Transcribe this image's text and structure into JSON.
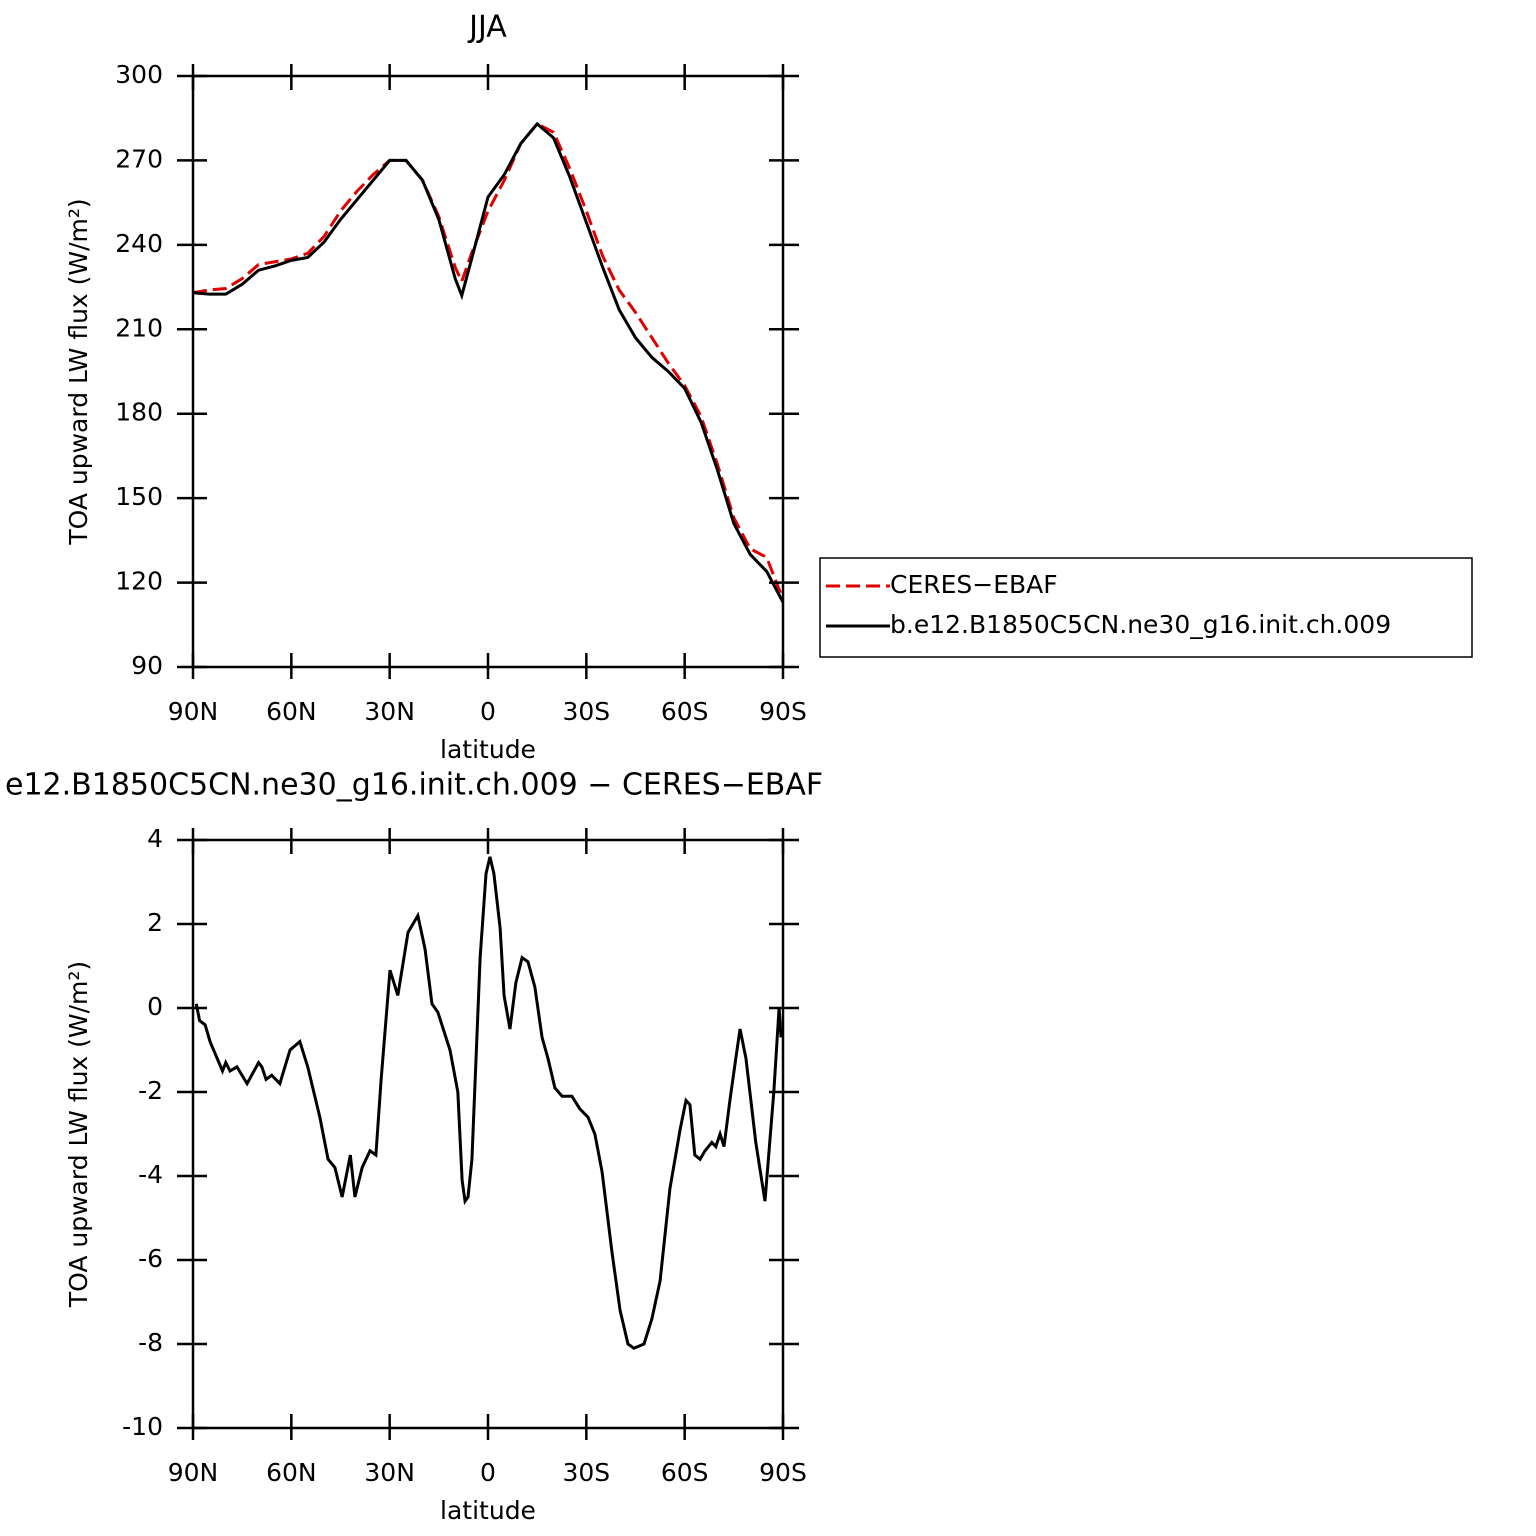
{
  "chart_data": [
    {
      "type": "line",
      "title": "JJA",
      "x_label": "latitude",
      "y_label": "TOA upward LW flux (W/m²)",
      "x": [
        90,
        85,
        80,
        75,
        70,
        65,
        60,
        55,
        50,
        45,
        40,
        35,
        30,
        25,
        20,
        15,
        10,
        8,
        5,
        0,
        -5,
        -10,
        -15,
        -20,
        -25,
        -30,
        -35,
        -40,
        -45,
        -50,
        -55,
        -60,
        -65,
        -70,
        -75,
        -80,
        -85,
        -90
      ],
      "series": [
        {
          "name": "CERES−EBAF",
          "color": "#e00000",
          "line_style": "dashed",
          "values": [
            223,
            224,
            224.5,
            228,
            233,
            234,
            235,
            237,
            243,
            252,
            259,
            265,
            270,
            270,
            263,
            250,
            232,
            227,
            237,
            252,
            263,
            276,
            283,
            280,
            267,
            252,
            236,
            224,
            216,
            207,
            198,
            190,
            179,
            162,
            143,
            132,
            129,
            114
          ]
        },
        {
          "name": "b.e12.B1850C5CN.ne30_g16.init.ch.009",
          "color": "#000000",
          "line_style": "solid",
          "values": [
            223,
            222.5,
            222.5,
            226,
            231,
            232.5,
            234.5,
            235.5,
            241,
            249,
            256,
            263,
            270,
            270,
            263,
            249,
            228,
            222,
            235,
            257,
            265,
            276,
            283,
            278,
            264,
            248,
            232,
            217,
            207,
            200,
            195,
            189,
            177,
            160,
            141,
            130,
            124,
            113
          ]
        }
      ],
      "xlim": [
        90,
        -90
      ],
      "xticks": [
        {
          "value": 90,
          "label": "90N"
        },
        {
          "value": 60,
          "label": "60N"
        },
        {
          "value": 30,
          "label": "30N"
        },
        0,
        {
          "value": -30,
          "label": "30S"
        },
        {
          "value": -60,
          "label": "60S"
        },
        {
          "value": -90,
          "label": "90S"
        }
      ],
      "ylim": [
        90,
        300
      ],
      "yticks": [
        90,
        120,
        150,
        180,
        210,
        240,
        270,
        300
      ],
      "legend": "right"
    },
    {
      "type": "line",
      "title": "e12.B1850C5CN.ne30_g16.init.ch.009 − CERES−EBAF",
      "x_label": "latitude",
      "y_label": "TOA upward LW flux (W/m²)",
      "x": [
        89,
        88,
        86.3,
        84.8,
        81,
        80,
        78.7,
        76.6,
        73.5,
        70,
        69,
        67.7,
        66,
        63.5,
        60.4,
        57.4,
        55,
        51.3,
        48.8,
        46.7,
        44.5,
        42,
        40.6,
        38.4,
        36,
        34.2,
        32.6,
        29.9,
        27.5,
        24.4,
        21.4,
        19.2,
        17.1,
        15.3,
        11.6,
        9.2,
        7.9,
        7,
        6.1,
        4.9,
        2.4,
        0.6,
        -0.6,
        -1.8,
        -3.7,
        -4.9,
        -6.7,
        -8.5,
        -10.4,
        -12.2,
        -14.3,
        -16.5,
        -18.3,
        -20.4,
        -22.6,
        -25.6,
        -28,
        -30.5,
        -32.6,
        -34.8,
        -37.8,
        -40.3,
        -42.7,
        -44.5,
        -47.6,
        -50,
        -52.5,
        -55.5,
        -58.6,
        -60.4,
        -61.6,
        -63.1,
        -64.7,
        -66.2,
        -68.3,
        -69.5,
        -70.8,
        -72,
        -73.8,
        -75.6,
        -76.9,
        -78.7,
        -81.7,
        -84.5,
        -87.2,
        -88.8,
        -89.4
      ],
      "series": [
        {
          "name": "b.e12.B1850C5CN.ne30_g16.init.ch.009",
          "color": "#000000",
          "line_style": "solid",
          "values": [
            0.1,
            -0.3,
            -0.4,
            -0.8,
            -1.5,
            -1.3,
            -1.5,
            -1.4,
            -1.8,
            -1.3,
            -1.4,
            -1.7,
            -1.6,
            -1.8,
            -1.0,
            -0.8,
            -1.4,
            -2.6,
            -3.6,
            -3.8,
            -4.5,
            -3.5,
            -4.5,
            -3.8,
            -3.4,
            -3.5,
            -1.7,
            0.9,
            0.3,
            1.8,
            2.2,
            1.4,
            0.1,
            -0.1,
            -1.0,
            -2.0,
            -4.1,
            -4.6,
            -4.5,
            -3.6,
            1.2,
            3.2,
            3.6,
            3.2,
            1.9,
            0.3,
            -0.5,
            0.6,
            1.2,
            1.1,
            0.5,
            -0.7,
            -1.2,
            -1.9,
            -2.1,
            -2.1,
            -2.4,
            -2.6,
            -3.0,
            -3.9,
            -5.8,
            -7.2,
            -8.0,
            -8.1,
            -8.0,
            -7.4,
            -6.5,
            -4.3,
            -2.9,
            -2.2,
            -2.3,
            -3.5,
            -3.6,
            -3.4,
            -3.2,
            -3.3,
            -3.0,
            -3.3,
            -2.2,
            -1.2,
            -0.5,
            -1.2,
            -3.2,
            -4.6,
            -2.0,
            0.0,
            -0.7
          ]
        }
      ],
      "xlim": [
        90,
        -90
      ],
      "xticks": [
        {
          "value": 90,
          "label": "90N"
        },
        {
          "value": 60,
          "label": "60N"
        },
        {
          "value": 30,
          "label": "30N"
        },
        0,
        {
          "value": -30,
          "label": "30S"
        },
        {
          "value": -60,
          "label": "60S"
        },
        {
          "value": -90,
          "label": "90S"
        }
      ],
      "ylim": [
        -10,
        4
      ],
      "yticks": [
        -10,
        -8,
        -6,
        -4,
        -2,
        0,
        2,
        4
      ]
    }
  ]
}
